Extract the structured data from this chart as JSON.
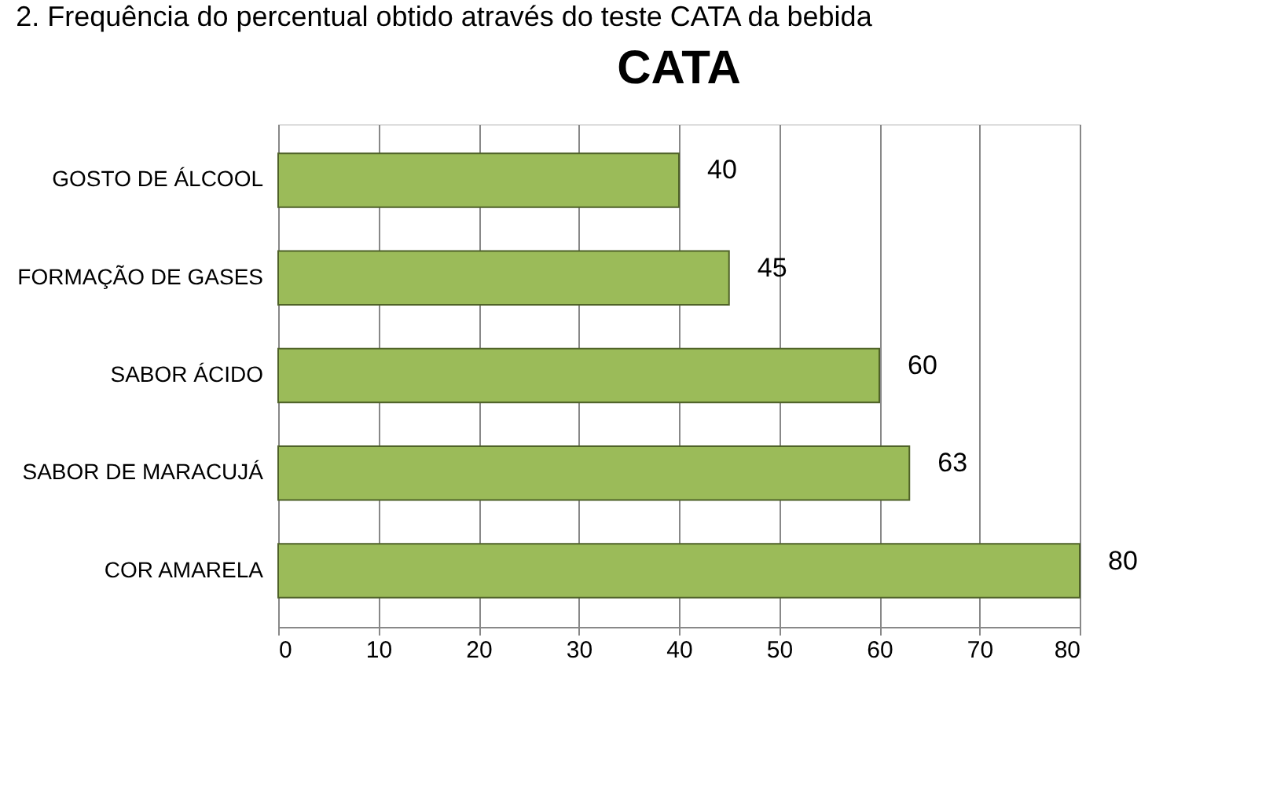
{
  "chart_data": {
    "type": "bar",
    "orientation": "horizontal",
    "title": "CATA",
    "annotations": [
      "2. Frequência do percentual obtido através do teste CATA da bebida"
    ],
    "categories": [
      "GOSTO DE ÁLCOOL",
      "FORMAÇÃO DE GASES",
      "SABOR ÁCIDO",
      "SABOR DE MARACUJÁ",
      "COR AMARELA"
    ],
    "values": [
      40,
      45,
      60,
      63,
      80
    ],
    "color": "#9bbb59",
    "xlim": [
      0,
      80
    ],
    "xticks": [
      0,
      10,
      20,
      30,
      40,
      50,
      60,
      70,
      80
    ],
    "grid": "x",
    "data_labels": true
  }
}
